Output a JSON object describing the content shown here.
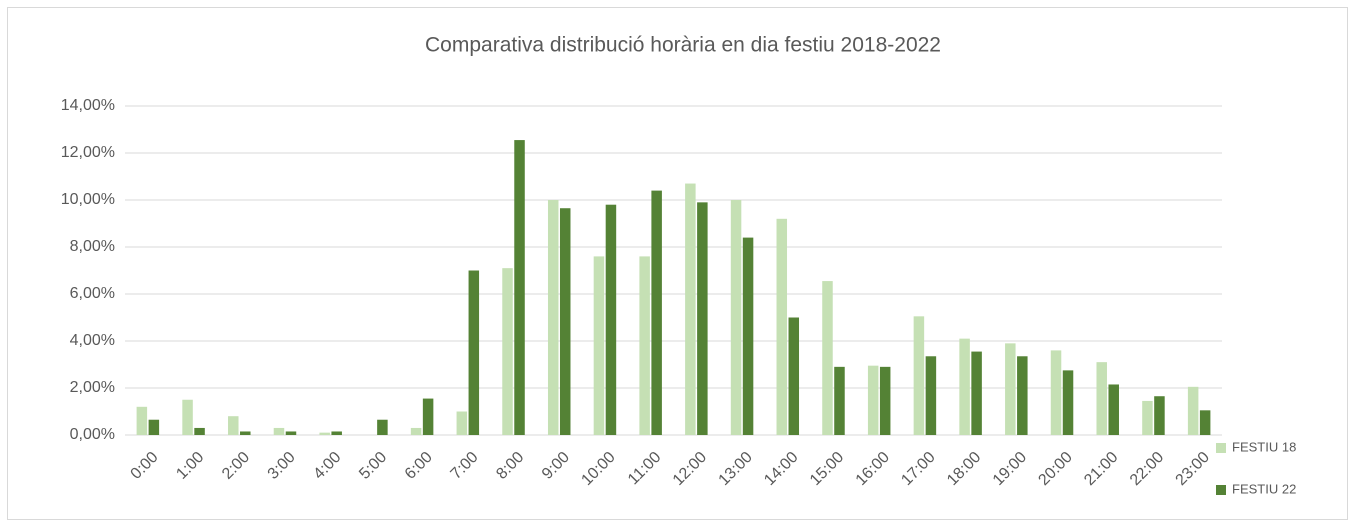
{
  "chart_data": {
    "type": "bar",
    "title": "Comparativa distribució horària en dia festiu 2018-2022",
    "categories": [
      "0:00",
      "1:00",
      "2:00",
      "3:00",
      "4:00",
      "5:00",
      "6:00",
      "7:00",
      "8:00",
      "9:00",
      "10:00",
      "11:00",
      "12:00",
      "13:00",
      "14:00",
      "15:00",
      "16:00",
      "17:00",
      "18:00",
      "19:00",
      "20:00",
      "21:00",
      "22:00",
      "23:00"
    ],
    "series": [
      {
        "name": "FESTIU 18",
        "color": "#c5e0b4",
        "values": [
          1.2,
          1.5,
          0.8,
          0.3,
          0.1,
          0,
          0.3,
          1.0,
          7.1,
          10.0,
          7.6,
          7.6,
          10.7,
          10.0,
          9.2,
          6.55,
          2.95,
          5.05,
          4.1,
          3.9,
          3.6,
          3.1,
          1.45,
          2.05
        ]
      },
      {
        "name": "FESTIU 22",
        "color": "#548235",
        "values": [
          0.65,
          0.3,
          0.15,
          0.15,
          0.15,
          0.65,
          1.55,
          7.0,
          12.55,
          9.65,
          9.8,
          10.4,
          9.9,
          8.4,
          5.0,
          2.9,
          2.9,
          3.35,
          3.55,
          3.35,
          2.75,
          2.15,
          1.65,
          1.05
        ]
      }
    ],
    "ylim": [
      0,
      14
    ],
    "yticks": [
      {
        "value": 0,
        "label": "0,00%"
      },
      {
        "value": 2,
        "label": "2,00%"
      },
      {
        "value": 4,
        "label": "4,00%"
      },
      {
        "value": 6,
        "label": "6,00%"
      },
      {
        "value": 8,
        "label": "8,00%"
      },
      {
        "value": 10,
        "label": "10,00%"
      },
      {
        "value": 12,
        "label": "12,00%"
      },
      {
        "value": 14,
        "label": "14,00%"
      }
    ],
    "grid": true,
    "legend": "right"
  }
}
